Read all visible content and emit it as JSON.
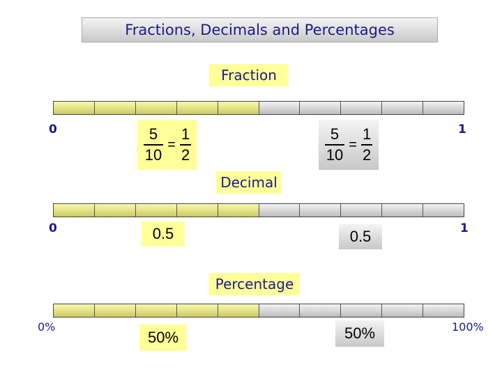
{
  "title": "Fractions, Decimals and Percentages",
  "sections": {
    "fraction": {
      "label": "Fraction",
      "start": "0",
      "end": "1",
      "left_equation": {
        "a_num": "5",
        "a_den": "10",
        "eq": "=",
        "b_num": "1",
        "b_den": "2"
      },
      "right_equation": {
        "a_num": "5",
        "a_den": "10",
        "eq": "=",
        "b_num": "1",
        "b_den": "2"
      }
    },
    "decimal": {
      "label": "Decimal",
      "start": "0",
      "end": "1",
      "left_value": "0.5",
      "right_value": "0.5"
    },
    "percentage": {
      "label": "Percentage",
      "start": "0%",
      "end": "100%",
      "left_value": "50%",
      "right_value": "50%"
    }
  },
  "bar": {
    "segments": 10,
    "shaded": 5,
    "shaded_fraction": 0.5
  },
  "colors": {
    "text": "#1a1a8c",
    "highlight": "#ffff99",
    "shaded": "#e6e68a",
    "unshaded": "#d8d8d8"
  }
}
